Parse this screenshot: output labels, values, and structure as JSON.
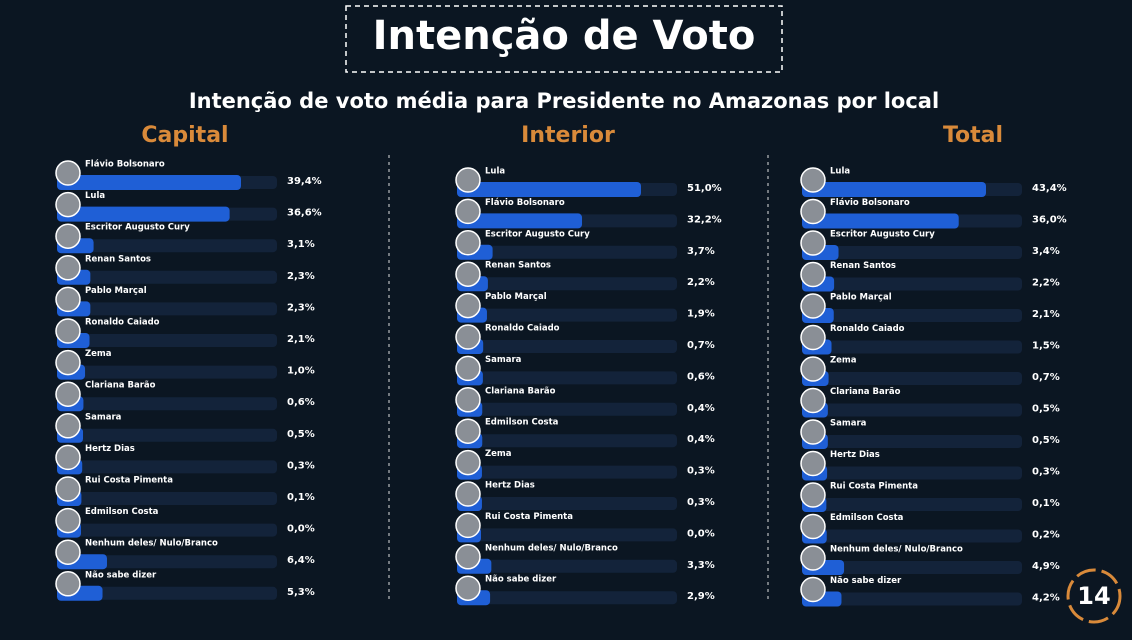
{
  "title": "Intenção de Voto",
  "subtitle": "Intenção de voto média para Presidente no Amazonas por local",
  "logo": "14",
  "chart_data": [
    {
      "type": "bar",
      "title": "Capital",
      "color": "#1f5fd6",
      "categories": [
        "Flávio Bolsonaro",
        "Lula",
        "Escritor Augusto Cury",
        "Renan Santos",
        "Pablo Marçal",
        "Ronaldo Caiado",
        "Zema",
        "Clariana Barão",
        "Samara",
        "Hertz Dias",
        "Rui Costa Pimenta",
        "Edmilson Costa",
        "Nenhum deles/ Nulo/Branco",
        "Não sabe dizer"
      ],
      "values": [
        39.4,
        36.6,
        3.1,
        2.3,
        2.3,
        2.1,
        1.0,
        0.6,
        0.5,
        0.3,
        0.1,
        0.0,
        6.4,
        5.3
      ],
      "value_labels": [
        "39,4%",
        "36,6%",
        "3,1%",
        "2,3%",
        "2,3%",
        "2,1%",
        "1,0%",
        "0,6%",
        "0,5%",
        "0,3%",
        "0,1%",
        "0,0%",
        "6,4%",
        "5,3%"
      ]
    },
    {
      "type": "bar",
      "title": "Interior",
      "color": "#1f5fd6",
      "categories": [
        "Lula",
        "Flávio Bolsonaro",
        "Escritor Augusto Cury",
        "Renan Santos",
        "Pablo Marçal",
        "Ronaldo Caiado",
        "Samara",
        "Clariana Barão",
        "Edmilson Costa",
        "Zema",
        "Hertz Dias",
        "Rui Costa Pimenta",
        "Nenhum deles/ Nulo/Branco",
        "Não sabe dizer"
      ],
      "values": [
        51.0,
        32.2,
        3.7,
        2.2,
        1.9,
        0.7,
        0.6,
        0.4,
        0.4,
        0.3,
        0.3,
        0.0,
        3.3,
        2.9
      ],
      "value_labels": [
        "51,0%",
        "32,2%",
        "3,7%",
        "2,2%",
        "1,9%",
        "0,7%",
        "0,6%",
        "0,4%",
        "0,4%",
        "0,3%",
        "0,3%",
        "0,0%",
        "3,3%",
        "2,9%"
      ]
    },
    {
      "type": "bar",
      "title": "Total",
      "color": "#1f5fd6",
      "categories": [
        "Lula",
        "Flávio Bolsonaro",
        "Escritor Augusto Cury",
        "Renan Santos",
        "Pablo Marçal",
        "Ronaldo Caiado",
        "Zema",
        "Clariana Barão",
        "Samara",
        "Hertz Dias",
        "Rui Costa Pimenta",
        "Edmilson Costa",
        "Nenhum deles/ Nulo/Branco",
        "Não sabe dizer"
      ],
      "values": [
        43.4,
        36.0,
        3.4,
        2.2,
        2.1,
        1.5,
        0.7,
        0.5,
        0.5,
        0.3,
        0.1,
        0.2,
        4.9,
        4.2
      ],
      "value_labels": [
        "43,4%",
        "36,0%",
        "3,4%",
        "2,2%",
        "2,1%",
        "1,5%",
        "0,7%",
        "0,5%",
        "0,5%",
        "0,3%",
        "0,1%",
        "0,2%",
        "4,9%",
        "4,2%"
      ]
    }
  ]
}
